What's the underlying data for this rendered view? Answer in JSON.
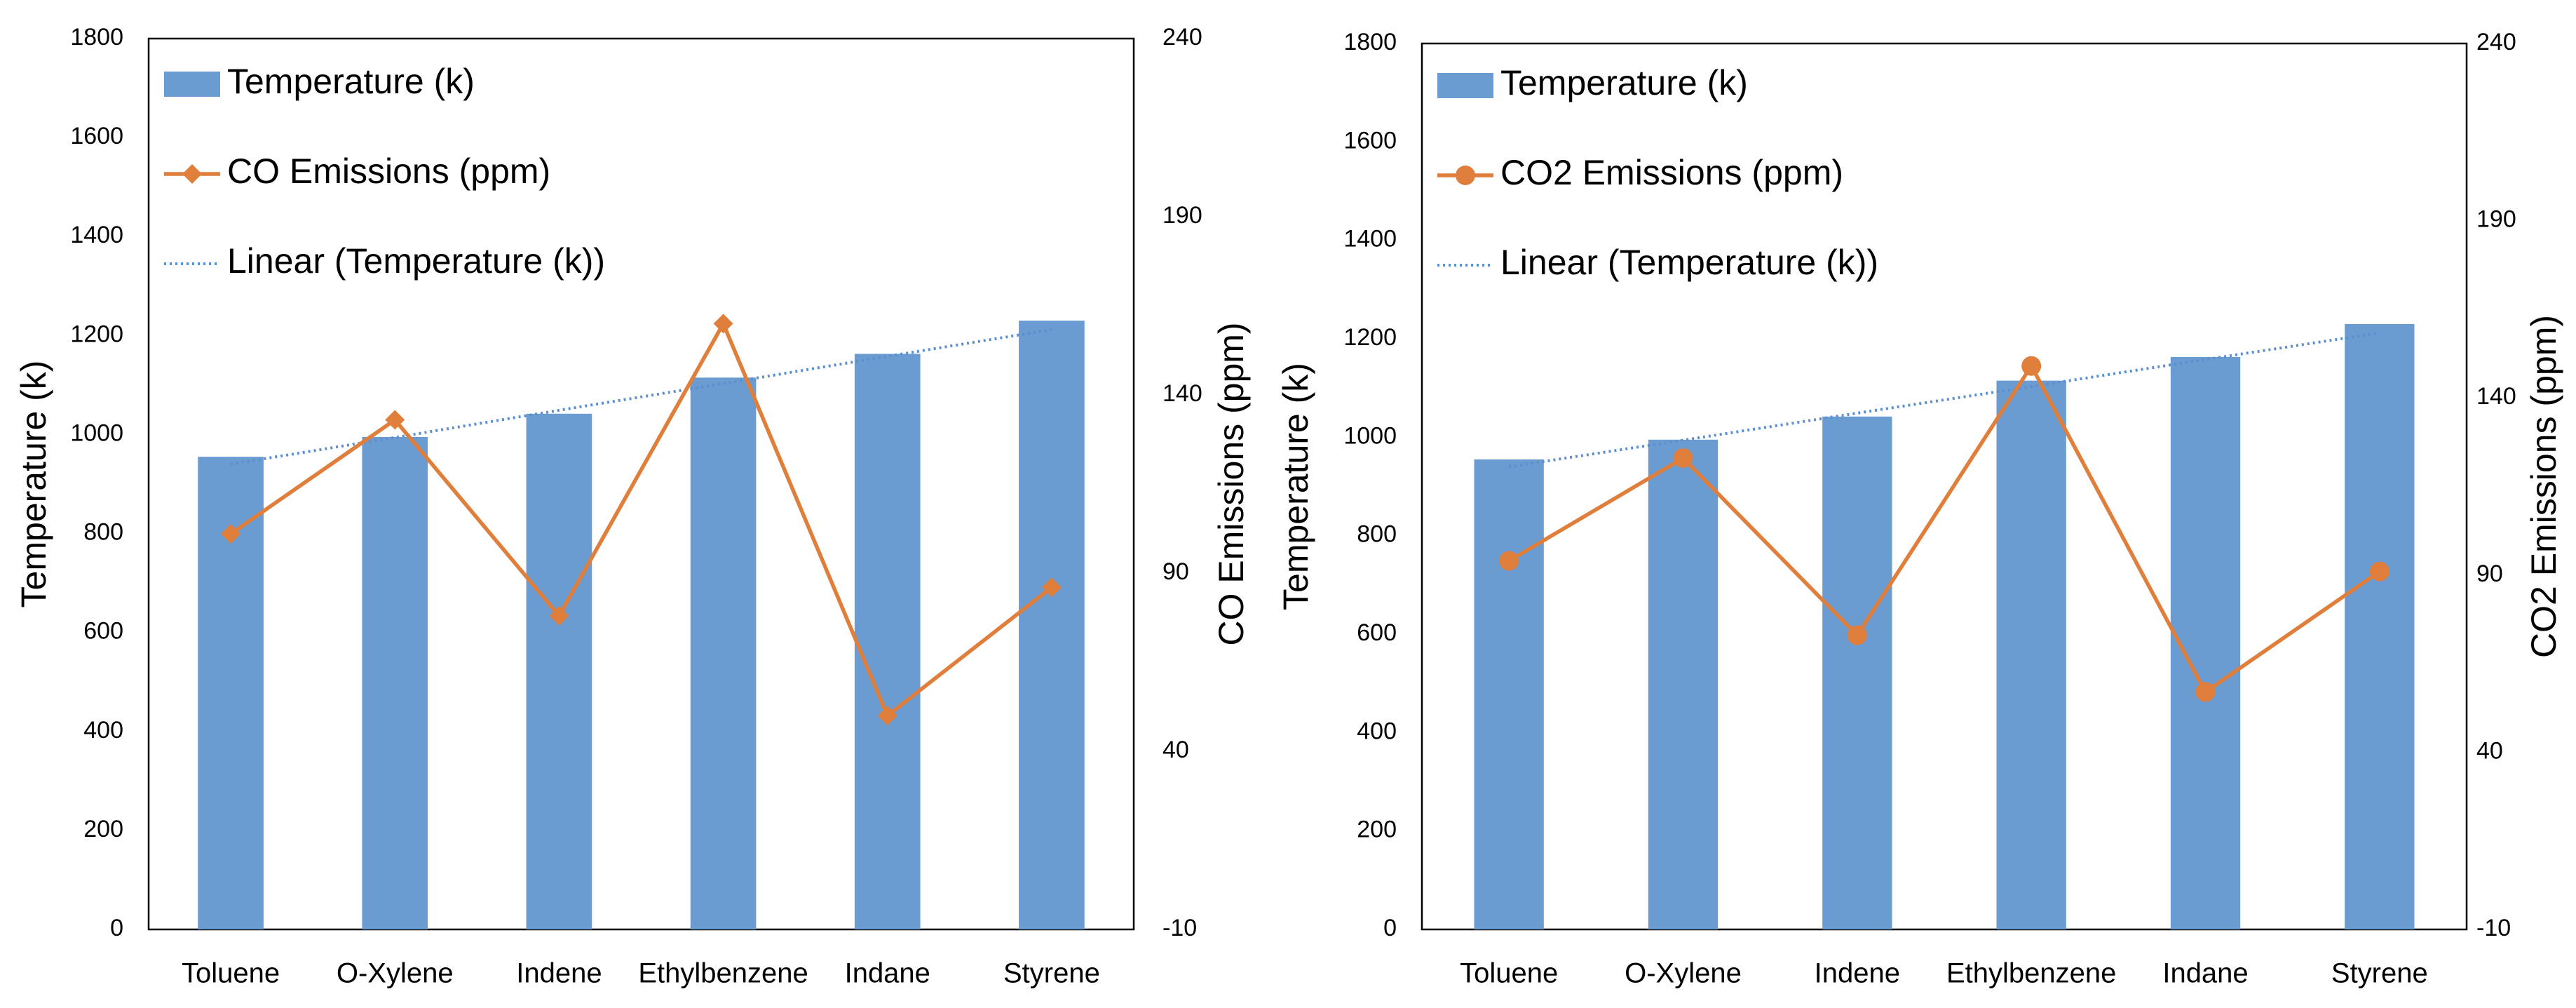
{
  "chart_data": [
    {
      "type": "bar",
      "categories": [
        "Toluene",
        "O-Xylene",
        "Indene",
        "Ethylbenzene",
        "Indane",
        "Styrene"
      ],
      "series": [
        {
          "name": "Temperature (k)",
          "kind": "bar",
          "axis": "left",
          "color": "#6a9bd1",
          "values": [
            955,
            995,
            1042,
            1115,
            1163,
            1230
          ]
        },
        {
          "name": "CO Emissions (ppm)",
          "kind": "line",
          "marker": "diamond",
          "axis": "right",
          "color": "#e07f3c",
          "values": [
            101,
            133,
            78,
            160,
            50,
            86
          ]
        },
        {
          "name": "Linear (Temperature (k))",
          "kind": "trendline",
          "style": "dotted",
          "axis": "left",
          "color": "#5b8fd0",
          "values": [
            940,
            994,
            1049,
            1103,
            1158,
            1212
          ]
        }
      ],
      "legend": [
        "Temperature (k)",
        "CO Emissions (ppm)",
        "Linear (Temperature (k))"
      ],
      "legend_position": "top-left",
      "ylabel": "Temperature (k)",
      "y2label": "CO Emissions (ppm)",
      "ylim": [
        0,
        1800
      ],
      "yticks": [
        "0",
        "200",
        "400",
        "600",
        "800",
        "1000",
        "1200",
        "1400",
        "1600",
        "1800"
      ],
      "y2lim": [
        -10,
        240
      ],
      "y2ticks": [
        "-10",
        "40",
        "90",
        "140",
        "190",
        "240"
      ]
    },
    {
      "type": "bar",
      "categories": [
        "Toluene",
        "O-Xylene",
        "Indene",
        "Ethylbenzene",
        "Indane",
        "Styrene"
      ],
      "series": [
        {
          "name": "Temperature (k)",
          "kind": "bar",
          "axis": "left",
          "color": "#6a9bd1",
          "values": [
            955,
            995,
            1042,
            1115,
            1163,
            1230
          ]
        },
        {
          "name": "CO2 Emissions (ppm)",
          "kind": "line",
          "marker": "circle",
          "axis": "right",
          "color": "#e07f3c",
          "values": [
            94,
            123,
            73,
            149,
            57,
            91
          ]
        },
        {
          "name": "Linear (Temperature (k))",
          "kind": "trendline",
          "style": "dotted",
          "axis": "left",
          "color": "#5b8fd0",
          "values": [
            940,
            994,
            1049,
            1103,
            1158,
            1212
          ]
        }
      ],
      "legend": [
        "Temperature (k)",
        "CO2 Emissions (ppm)",
        "Linear (Temperature (k))"
      ],
      "legend_position": "top-left",
      "ylabel": "Temperature (k)",
      "y2label": "CO2 Emissions (ppm)",
      "ylim": [
        0,
        1800
      ],
      "yticks": [
        "0",
        "200",
        "400",
        "600",
        "800",
        "1000",
        "1200",
        "1400",
        "1600",
        "1800"
      ],
      "y2lim": [
        -10,
        240
      ],
      "y2ticks": [
        "-10",
        "40",
        "90",
        "140",
        "190",
        "240"
      ]
    }
  ]
}
